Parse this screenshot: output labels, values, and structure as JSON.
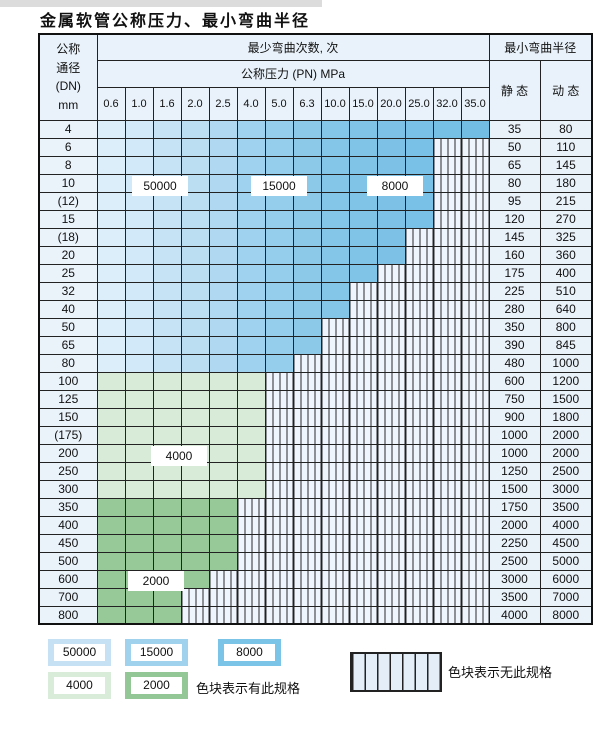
{
  "title": "金属软管公称压力、最小弯曲半径",
  "header": {
    "dn_lines": [
      "公称",
      "通径",
      "(DN)",
      "mm"
    ],
    "bend_cycles_title": "最少弯曲次数, 次",
    "pressure_title": "公称压力 (PN) MPa",
    "pressures": [
      "0.6",
      "1.0",
      "1.6",
      "2.0",
      "2.5",
      "4.0",
      "5.0",
      "6.3",
      "10.0",
      "15.0",
      "20.0",
      "25.0",
      "32.0",
      "35.0"
    ],
    "radius_title": "最小弯曲半径",
    "static_label": "静 态",
    "dynamic_label": "动 态"
  },
  "zones": {
    "blue": [
      {
        "value": "50000",
        "start": 0,
        "end": 4,
        "color_from": "#dceefa",
        "color_to": "#b0d8f0"
      },
      {
        "value": "15000",
        "start": 5,
        "end": 7,
        "color_from": "#9ed2ee",
        "color_to": "#8cc9e9"
      },
      {
        "value": "8000",
        "start": 8,
        "end": 13,
        "color_from": "#84c6e8",
        "color_to": "#72bde4"
      }
    ],
    "green": {
      "g4000": "#d7ebd8",
      "g2000": "#96c997"
    }
  },
  "rows": [
    {
      "dn": "4",
      "group": "blue",
      "colored_cols": 14,
      "static": "35",
      "dynamic": "80"
    },
    {
      "dn": "6",
      "group": "blue",
      "colored_cols": 12,
      "static": "50",
      "dynamic": "110"
    },
    {
      "dn": "8",
      "group": "blue",
      "colored_cols": 12,
      "static": "65",
      "dynamic": "145"
    },
    {
      "dn": "10",
      "group": "blue",
      "colored_cols": 12,
      "static": "80",
      "dynamic": "180"
    },
    {
      "dn": "(12)",
      "group": "blue",
      "colored_cols": 12,
      "static": "95",
      "dynamic": "215"
    },
    {
      "dn": "15",
      "group": "blue",
      "colored_cols": 12,
      "static": "120",
      "dynamic": "270"
    },
    {
      "dn": "(18)",
      "group": "blue",
      "colored_cols": 11,
      "static": "145",
      "dynamic": "325"
    },
    {
      "dn": "20",
      "group": "blue",
      "colored_cols": 11,
      "static": "160",
      "dynamic": "360"
    },
    {
      "dn": "25",
      "group": "blue",
      "colored_cols": 10,
      "static": "175",
      "dynamic": "400"
    },
    {
      "dn": "32",
      "group": "blue",
      "colored_cols": 9,
      "static": "225",
      "dynamic": "510"
    },
    {
      "dn": "40",
      "group": "blue",
      "colored_cols": 9,
      "static": "280",
      "dynamic": "640"
    },
    {
      "dn": "50",
      "group": "blue",
      "colored_cols": 8,
      "static": "350",
      "dynamic": "800"
    },
    {
      "dn": "65",
      "group": "blue",
      "colored_cols": 8,
      "static": "390",
      "dynamic": "845"
    },
    {
      "dn": "80",
      "group": "blue",
      "colored_cols": 7,
      "static": "480",
      "dynamic": "1000"
    },
    {
      "dn": "100",
      "group": "g4000",
      "colored_cols": 6,
      "static": "600",
      "dynamic": "1200"
    },
    {
      "dn": "125",
      "group": "g4000",
      "colored_cols": 6,
      "static": "750",
      "dynamic": "1500"
    },
    {
      "dn": "150",
      "group": "g4000",
      "colored_cols": 6,
      "static": "900",
      "dynamic": "1800"
    },
    {
      "dn": "(175)",
      "group": "g4000",
      "colored_cols": 6,
      "static": "1000",
      "dynamic": "2000"
    },
    {
      "dn": "200",
      "group": "g4000",
      "colored_cols": 6,
      "static": "1000",
      "dynamic": "2000"
    },
    {
      "dn": "250",
      "group": "g4000",
      "colored_cols": 6,
      "static": "1250",
      "dynamic": "2500"
    },
    {
      "dn": "300",
      "group": "g4000",
      "colored_cols": 6,
      "static": "1500",
      "dynamic": "3000"
    },
    {
      "dn": "350",
      "group": "g2000",
      "colored_cols": 5,
      "static": "1750",
      "dynamic": "3500"
    },
    {
      "dn": "400",
      "group": "g2000",
      "colored_cols": 5,
      "static": "2000",
      "dynamic": "4000"
    },
    {
      "dn": "450",
      "group": "g2000",
      "colored_cols": 5,
      "static": "2250",
      "dynamic": "4500"
    },
    {
      "dn": "500",
      "group": "g2000",
      "colored_cols": 5,
      "static": "2500",
      "dynamic": "5000"
    },
    {
      "dn": "600",
      "group": "g2000",
      "colored_cols": 4,
      "static": "3000",
      "dynamic": "6000"
    },
    {
      "dn": "700",
      "group": "g2000",
      "colored_cols": 3,
      "static": "3500",
      "dynamic": "7000"
    },
    {
      "dn": "800",
      "group": "g2000",
      "colored_cols": 3,
      "static": "4000",
      "dynamic": "8000"
    }
  ],
  "cell_labels": [
    "50000",
    "15000",
    "8000",
    "4000",
    "2000"
  ],
  "legend": {
    "items": [
      {
        "value": "50000",
        "color": "#c6e1f4"
      },
      {
        "value": "15000",
        "color": "#a0d2ee"
      },
      {
        "value": "8000",
        "color": "#7cc3e8"
      },
      {
        "value": "4000",
        "color": "#d9ecd9"
      },
      {
        "value": "2000",
        "color": "#93c795"
      }
    ],
    "has_spec_text": "色块表示有此规格",
    "no_spec_text": "色块表示无此规格"
  }
}
